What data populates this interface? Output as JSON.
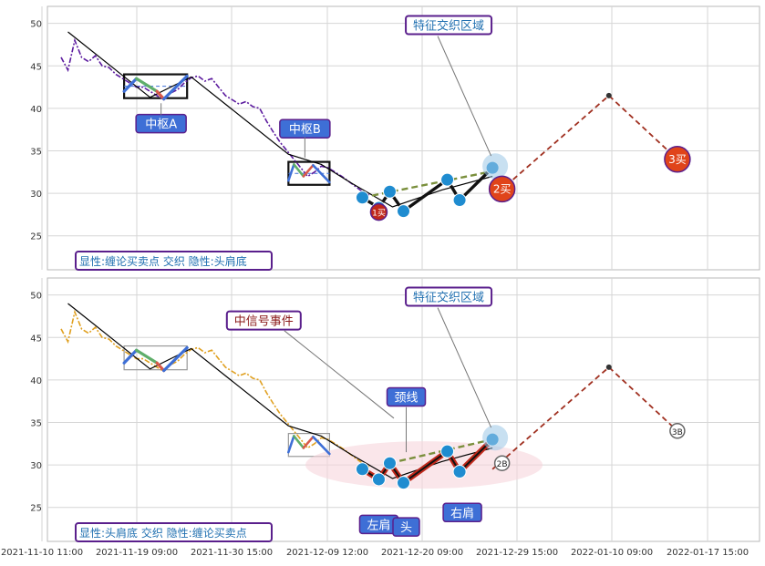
{
  "chart_data": [
    {
      "type": "line",
      "panel": "top",
      "ylim": [
        21,
        52
      ],
      "yticks": [
        25,
        30,
        35,
        40,
        45,
        50
      ],
      "xlim": [
        -1,
        51
      ],
      "grid": true,
      "footer_label": "显性:缠论买卖点 交织 隐性:头肩底",
      "series": [
        {
          "style": "price",
          "color": "#5b1a9e",
          "points": [
            [
              0,
              46
            ],
            [
              0.5,
              44.5
            ],
            [
              1,
              48
            ],
            [
              1.5,
              46
            ],
            [
              2,
              45.5
            ],
            [
              2.5,
              46.2
            ],
            [
              3,
              45
            ],
            [
              3.5,
              44.8
            ],
            [
              4,
              44
            ],
            [
              4.5,
              43.5
            ],
            [
              5,
              43
            ],
            [
              5.5,
              42.5
            ],
            [
              6,
              42.5
            ],
            [
              6.5,
              42
            ],
            [
              7,
              41.5
            ],
            [
              7.5,
              41
            ],
            [
              8,
              41.8
            ],
            [
              8.5,
              42.2
            ],
            [
              9,
              43
            ],
            [
              9.5,
              43.6
            ],
            [
              10,
              43.8
            ],
            [
              10.5,
              43.2
            ],
            [
              11,
              43.5
            ],
            [
              11.5,
              42.5
            ],
            [
              12,
              41.5
            ],
            [
              12.5,
              41
            ],
            [
              13,
              40.5
            ],
            [
              13.5,
              40.8
            ],
            [
              14,
              40.2
            ],
            [
              14.5,
              40
            ],
            [
              15,
              38.5
            ],
            [
              15.5,
              37.2
            ],
            [
              16,
              36
            ],
            [
              16.5,
              35
            ],
            [
              17,
              34
            ],
            [
              17.5,
              33
            ],
            [
              18,
              32
            ],
            [
              18.5,
              32.5
            ],
            [
              19,
              33.2
            ],
            [
              19.5,
              33
            ],
            [
              20,
              32.5
            ],
            [
              20.5,
              32
            ],
            [
              21,
              31.4
            ],
            [
              21.5,
              30.8
            ],
            [
              22,
              30.2
            ],
            [
              22.5,
              29.8
            ]
          ]
        },
        {
          "style": "stroke-trend",
          "color": "#000000",
          "points": [
            [
              0.5,
              49
            ],
            [
              6.5,
              41.3
            ],
            [
              9.5,
              43.7
            ],
            [
              16.6,
              34.6
            ],
            [
              19,
              33.4
            ],
            [
              21.2,
              31.2
            ],
            [
              24.2,
              28.4
            ],
            [
              27.8,
              30.4
            ],
            [
              31.5,
              32
            ]
          ]
        },
        {
          "style": "forecast",
          "color": "#a03020",
          "points": [
            [
              31.5,
              29.5
            ],
            [
              40,
              41.5
            ],
            [
              45,
              34
            ]
          ]
        },
        {
          "style": "neckline",
          "color": "#7a8f3c",
          "points": [
            [
              22,
              29.5
            ],
            [
              31.5,
              32.6
            ]
          ]
        }
      ],
      "pivots": [
        {
          "name": "中枢A",
          "x_range": [
            4.6,
            9.2
          ],
          "y_range": [
            41.2,
            44
          ]
        },
        {
          "name": "中枢B",
          "x_range": [
            16.6,
            19.6
          ],
          "y_range": [
            31,
            33.7
          ]
        }
      ],
      "markers": [
        {
          "label": "1买",
          "x": 23.2,
          "y": 27.8,
          "color": "#c0281a"
        },
        {
          "label": "2买",
          "x": 32.2,
          "y": 30.5,
          "color": "#e0441a"
        },
        {
          "label": "3买",
          "x": 45,
          "y": 34,
          "color": "#e0441a"
        }
      ],
      "key_points": [
        [
          22,
          29.5
        ],
        [
          23.2,
          28.3
        ],
        [
          24,
          30.2
        ],
        [
          25,
          27.9
        ],
        [
          28.2,
          31.6
        ],
        [
          29.1,
          29.2
        ],
        [
          31.5,
          33
        ]
      ],
      "annotations": [
        {
          "text": "中枢A",
          "x": 7.3,
          "y": 38.2
        },
        {
          "text": "中枢B",
          "x": 17.8,
          "y": 37.6
        },
        {
          "text": "特征交织区域",
          "x": 28.3,
          "y": 49.8
        }
      ]
    },
    {
      "type": "line",
      "panel": "bottom",
      "ylim": [
        21,
        52
      ],
      "yticks": [
        25,
        30,
        35,
        40,
        45,
        50
      ],
      "xlim": [
        -1,
        51
      ],
      "grid": true,
      "footer_label": "显性:头肩底 交织 隐性:缠论买卖点",
      "xtick_labels": [
        "2021-11-10 11:00",
        "2021-11-19 09:00",
        "2021-11-30 15:00",
        "2021-12-09 12:00",
        "2021-12-20 09:00",
        "2021-12-29 15:00",
        "2022-01-10 09:00",
        "2022-01-17 15:00"
      ],
      "series": [
        {
          "style": "price",
          "color": "#e0a020",
          "points": [
            [
              0,
              46
            ],
            [
              0.5,
              44.5
            ],
            [
              1,
              48
            ],
            [
              1.5,
              46
            ],
            [
              2,
              45.5
            ],
            [
              2.5,
              46.2
            ],
            [
              3,
              45
            ],
            [
              3.5,
              44.8
            ],
            [
              4,
              44
            ],
            [
              4.5,
              43.5
            ],
            [
              5,
              43
            ],
            [
              5.5,
              42.5
            ],
            [
              6,
              42.5
            ],
            [
              6.5,
              42
            ],
            [
              7,
              41.5
            ],
            [
              7.5,
              41
            ],
            [
              8,
              41.8
            ],
            [
              8.5,
              42.2
            ],
            [
              9,
              43
            ],
            [
              9.5,
              43.6
            ],
            [
              10,
              43.8
            ],
            [
              10.5,
              43.2
            ],
            [
              11,
              43.5
            ],
            [
              11.5,
              42.5
            ],
            [
              12,
              41.5
            ],
            [
              12.5,
              41
            ],
            [
              13,
              40.5
            ],
            [
              13.5,
              40.8
            ],
            [
              14,
              40.2
            ],
            [
              14.5,
              40
            ],
            [
              15,
              38.5
            ],
            [
              15.5,
              37.2
            ],
            [
              16,
              36
            ],
            [
              16.5,
              35
            ],
            [
              17,
              34
            ],
            [
              17.5,
              33
            ],
            [
              18,
              32
            ],
            [
              18.5,
              32.5
            ],
            [
              19,
              33.2
            ],
            [
              19.5,
              33
            ],
            [
              20,
              32.5
            ],
            [
              20.5,
              32
            ],
            [
              21,
              31.4
            ],
            [
              21.5,
              30.8
            ],
            [
              22,
              30.2
            ],
            [
              22.5,
              29.8
            ]
          ]
        },
        {
          "style": "stroke-trend",
          "color": "#000000",
          "points": [
            [
              0.5,
              49
            ],
            [
              6.5,
              41.3
            ],
            [
              9.5,
              43.7
            ],
            [
              16.6,
              34.6
            ],
            [
              19,
              33.4
            ],
            [
              21.2,
              31.2
            ],
            [
              24.2,
              28.4
            ],
            [
              27.8,
              30.4
            ],
            [
              31.5,
              32
            ]
          ]
        },
        {
          "style": "forecast",
          "color": "#a03020",
          "points": [
            [
              31.5,
              29.5
            ],
            [
              40,
              41.5
            ],
            [
              45,
              34
            ]
          ]
        },
        {
          "style": "neckline",
          "color": "#7a8f3c",
          "points": [
            [
              24,
              30.2
            ],
            [
              31.5,
              33
            ]
          ]
        }
      ],
      "markers": [
        {
          "label": "2B",
          "x": 32.2,
          "y": 30.2,
          "color": "#ffffff"
        },
        {
          "label": "3B",
          "x": 45,
          "y": 34,
          "color": "#ffffff"
        }
      ],
      "key_points": [
        [
          22,
          29.5
        ],
        [
          23.2,
          28.3
        ],
        [
          24,
          30.2
        ],
        [
          25,
          27.9
        ],
        [
          28.2,
          31.6
        ],
        [
          29.1,
          29.2
        ],
        [
          31.5,
          33
        ]
      ],
      "annotations": [
        {
          "text": "中信号事件",
          "x": 14.8,
          "y": 47
        },
        {
          "text": "特征交织区域",
          "x": 28.3,
          "y": 49.8
        },
        {
          "text": "颈线",
          "x": 25.2,
          "y": 38
        },
        {
          "text": "左肩",
          "x": 23.2,
          "y": 23
        },
        {
          "text": "头",
          "x": 25.2,
          "y": 22.7
        },
        {
          "text": "右肩",
          "x": 29.3,
          "y": 24.4
        }
      ]
    }
  ]
}
